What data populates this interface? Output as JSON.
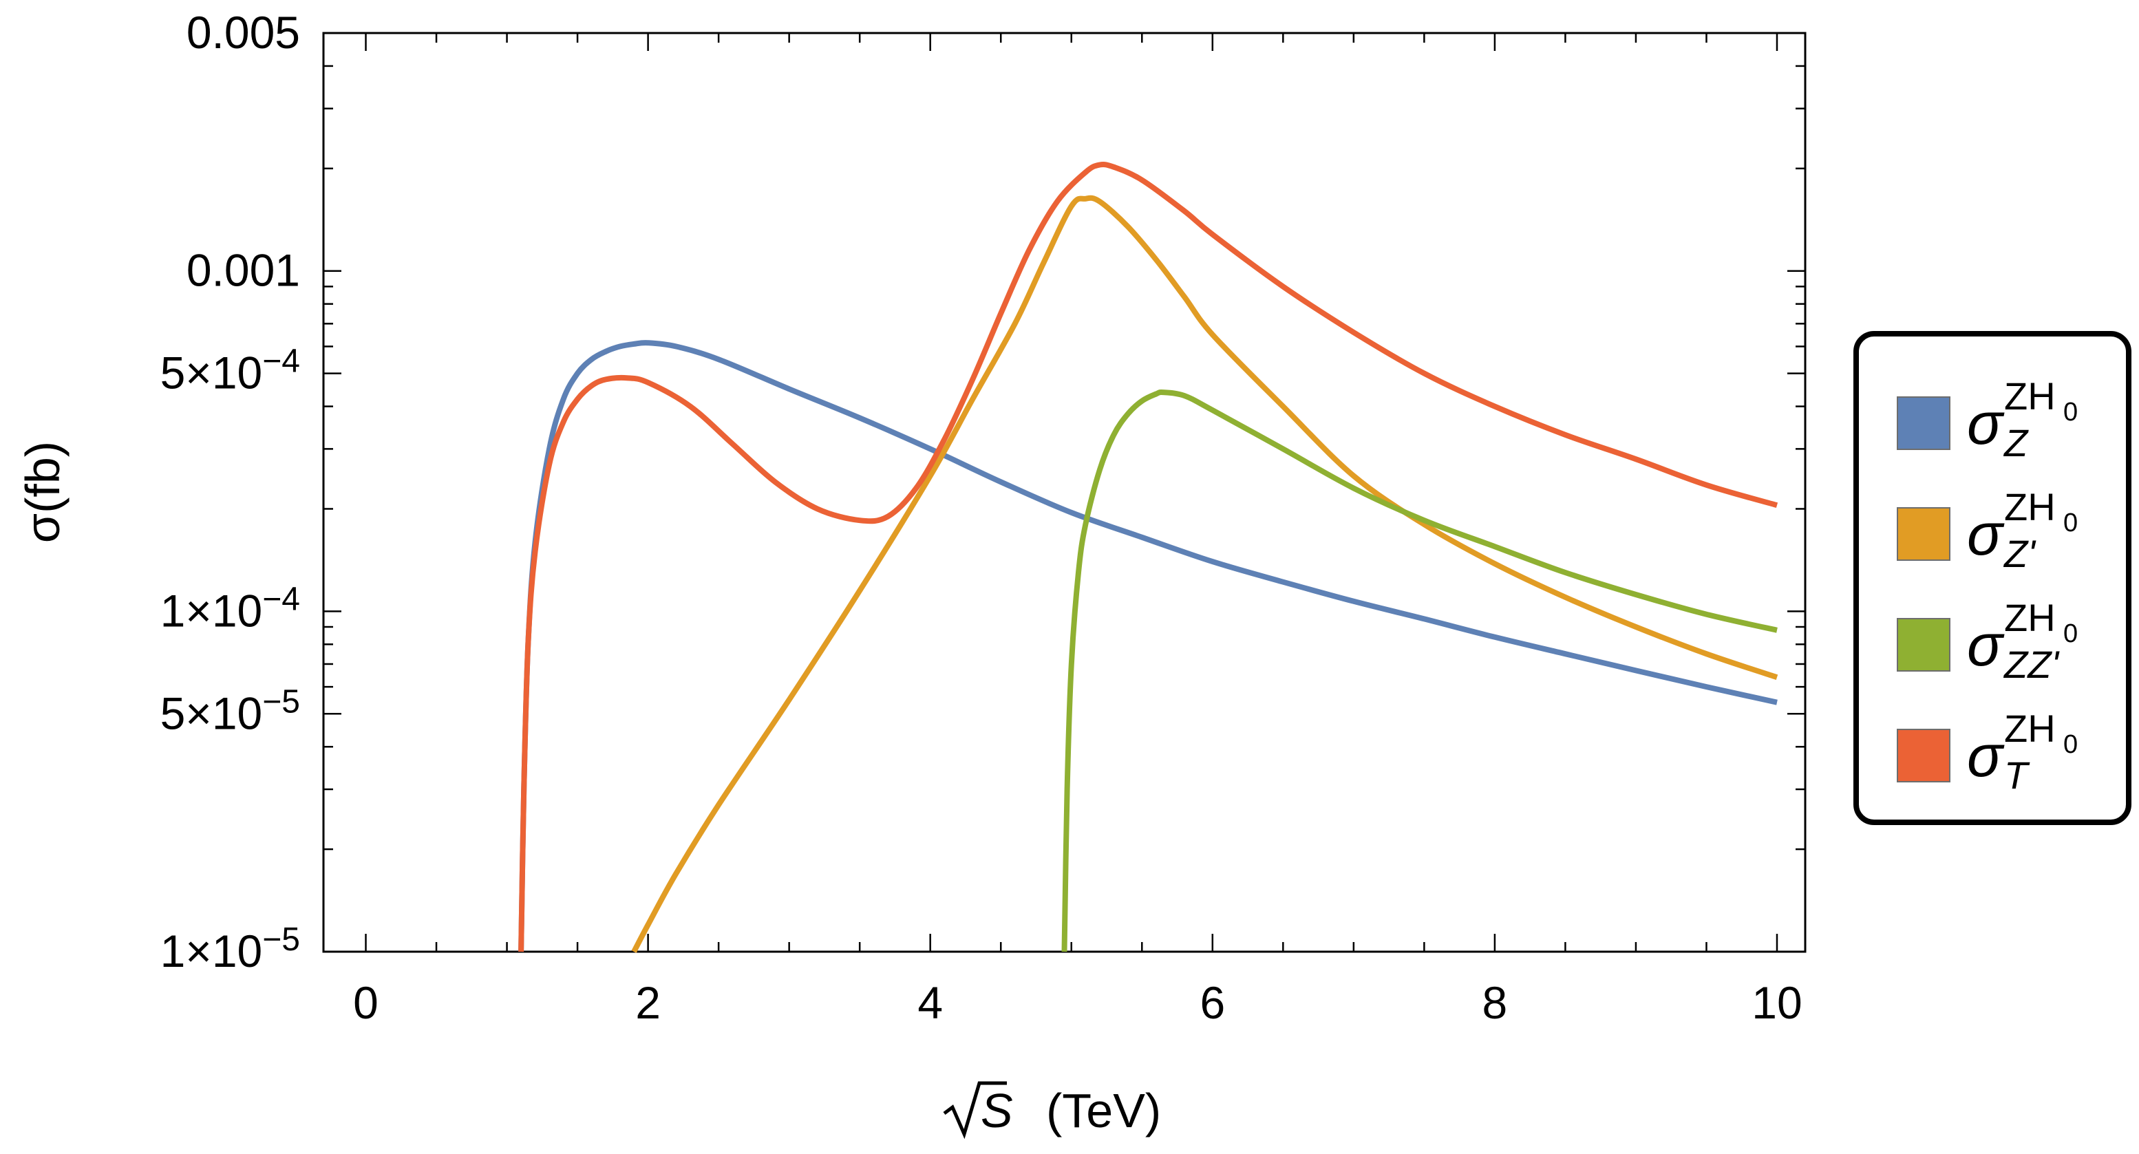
{
  "chart_data": {
    "type": "line",
    "xlabel": "(TeV)",
    "xlabel_symbol": "S",
    "ylabel": "σ(fb)",
    "x_scale": "linear",
    "y_scale": "log",
    "xlim": [
      -0.3,
      10.2
    ],
    "ylim": [
      1e-05,
      0.005
    ],
    "x_ticks": [
      0,
      2,
      4,
      6,
      8,
      10
    ],
    "x_tick_labels": [
      "0",
      "2",
      "4",
      "6",
      "8",
      "10"
    ],
    "y_ticks": [
      1e-05,
      5e-05,
      0.0001,
      0.0005,
      0.001,
      0.005
    ],
    "y_tick_labels": [
      {
        "mantissa": "1",
        "exp": "−5"
      },
      {
        "mantissa": "5",
        "exp": "−5"
      },
      {
        "mantissa": "1",
        "exp": "−4"
      },
      {
        "mantissa": "5",
        "exp": "−4"
      },
      {
        "plain": "0.001"
      },
      {
        "plain": "0.005"
      }
    ],
    "grid": false,
    "legend_position": "right",
    "series": [
      {
        "name": "σ_Z^{ZH0}",
        "label": {
          "base": "σ",
          "sup": "ZH",
          "supsub": "0",
          "sub": "Z"
        },
        "color": "#5e81b5",
        "points": [
          [
            1.1,
            1e-05
          ],
          [
            1.12,
            3e-05
          ],
          [
            1.15,
            8e-05
          ],
          [
            1.2,
            0.00016
          ],
          [
            1.3,
            0.0003
          ],
          [
            1.4,
            0.00042
          ],
          [
            1.5,
            0.0005
          ],
          [
            1.6,
            0.00055
          ],
          [
            1.7,
            0.00058
          ],
          [
            1.8,
            0.0006
          ],
          [
            1.9,
            0.00061
          ],
          [
            2.0,
            0.000615
          ],
          [
            2.2,
            0.0006
          ],
          [
            2.5,
            0.00055
          ],
          [
            3.0,
            0.00045
          ],
          [
            3.5,
            0.00037
          ],
          [
            4.0,
            0.0003
          ],
          [
            4.5,
            0.00024
          ],
          [
            5.0,
            0.000195
          ],
          [
            5.5,
            0.000165
          ],
          [
            6.0,
            0.00014
          ],
          [
            6.5,
            0.000122
          ],
          [
            7.0,
            0.000107
          ],
          [
            7.5,
            9.5e-05
          ],
          [
            8.0,
            8.4e-05
          ],
          [
            8.5,
            7.5e-05
          ],
          [
            9.0,
            6.7e-05
          ],
          [
            9.5,
            6e-05
          ],
          [
            10.0,
            5.4e-05
          ]
        ]
      },
      {
        "name": "σ_Z'^{ZH0}",
        "label": {
          "base": "σ",
          "sup": "ZH",
          "supsub": "0",
          "sub": "Z'"
        },
        "color": "#e19c24",
        "points": [
          [
            1.9,
            1e-05
          ],
          [
            2.0,
            1.2e-05
          ],
          [
            2.2,
            1.7e-05
          ],
          [
            2.5,
            2.7e-05
          ],
          [
            3.0,
            5.5e-05
          ],
          [
            3.5,
            0.000115
          ],
          [
            4.0,
            0.00025
          ],
          [
            4.3,
            0.00042
          ],
          [
            4.6,
            0.0007
          ],
          [
            4.8,
            0.00105
          ],
          [
            5.0,
            0.00155
          ],
          [
            5.1,
            0.00163
          ],
          [
            5.2,
            0.0016
          ],
          [
            5.4,
            0.00135
          ],
          [
            5.6,
            0.00108
          ],
          [
            5.8,
            0.00084
          ],
          [
            6.0,
            0.00065
          ],
          [
            6.5,
            0.0004
          ],
          [
            7.0,
            0.00025
          ],
          [
            7.5,
            0.00018
          ],
          [
            8.0,
            0.000138
          ],
          [
            8.5,
            0.00011
          ],
          [
            9.0,
            9e-05
          ],
          [
            9.5,
            7.5e-05
          ],
          [
            10.0,
            6.4e-05
          ]
        ]
      },
      {
        "name": "σ_ZZ'^{ZH0}",
        "label": {
          "base": "σ",
          "sup": "ZH",
          "supsub": "0",
          "sub": "ZZ'"
        },
        "color": "#8fb032",
        "points": [
          [
            4.95,
            1e-05
          ],
          [
            4.97,
            3e-05
          ],
          [
            5.0,
            7e-05
          ],
          [
            5.05,
            0.00013
          ],
          [
            5.1,
            0.00018
          ],
          [
            5.2,
            0.00026
          ],
          [
            5.3,
            0.00033
          ],
          [
            5.4,
            0.00038
          ],
          [
            5.5,
            0.000415
          ],
          [
            5.6,
            0.000435
          ],
          [
            5.65,
            0.00044
          ],
          [
            5.8,
            0.00043
          ],
          [
            6.0,
            0.00039
          ],
          [
            6.5,
            0.0003
          ],
          [
            7.0,
            0.00023
          ],
          [
            7.5,
            0.000185
          ],
          [
            8.0,
            0.000155
          ],
          [
            8.5,
            0.00013
          ],
          [
            9.0,
            0.000112
          ],
          [
            9.5,
            9.8e-05
          ],
          [
            10.0,
            8.8e-05
          ]
        ]
      },
      {
        "name": "σ_T^{ZH0}",
        "label": {
          "base": "σ",
          "sup": "ZH",
          "supsub": "0",
          "sub": "T"
        },
        "color": "#eb6235",
        "points": [
          [
            1.1,
            1e-05
          ],
          [
            1.12,
            3e-05
          ],
          [
            1.15,
            8e-05
          ],
          [
            1.2,
            0.00015
          ],
          [
            1.3,
            0.00027
          ],
          [
            1.4,
            0.00036
          ],
          [
            1.5,
            0.00042
          ],
          [
            1.6,
            0.00046
          ],
          [
            1.7,
            0.00048
          ],
          [
            1.85,
            0.000485
          ],
          [
            2.0,
            0.00047
          ],
          [
            2.3,
            0.0004
          ],
          [
            2.6,
            0.00031
          ],
          [
            2.9,
            0.00024
          ],
          [
            3.2,
            0.0002
          ],
          [
            3.5,
            0.000185
          ],
          [
            3.7,
            0.00019
          ],
          [
            3.9,
            0.00023
          ],
          [
            4.1,
            0.00032
          ],
          [
            4.3,
            0.00048
          ],
          [
            4.5,
            0.00075
          ],
          [
            4.7,
            0.00115
          ],
          [
            4.9,
            0.0016
          ],
          [
            5.1,
            0.00195
          ],
          [
            5.2,
            0.00205
          ],
          [
            5.3,
            0.00202
          ],
          [
            5.5,
            0.00185
          ],
          [
            5.8,
            0.0015
          ],
          [
            6.0,
            0.00128
          ],
          [
            6.5,
            0.0009
          ],
          [
            7.0,
            0.00066
          ],
          [
            7.5,
            0.0005
          ],
          [
            8.0,
            0.0004
          ],
          [
            8.5,
            0.00033
          ],
          [
            9.0,
            0.00028
          ],
          [
            9.5,
            0.000235
          ],
          [
            10.0,
            0.000205
          ]
        ]
      }
    ]
  }
}
